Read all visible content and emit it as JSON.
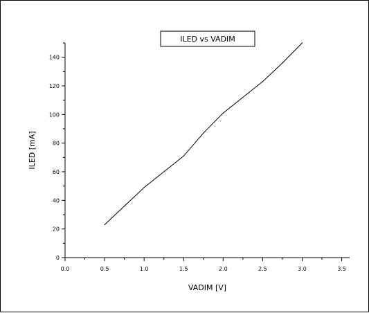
{
  "chart_data": {
    "type": "line",
    "title": "ILED vs VADIM",
    "xlabel": "VADIM [V]",
    "ylabel": "ILED [mA]",
    "xlim": [
      0.0,
      3.6
    ],
    "ylim": [
      0,
      150
    ],
    "xticks": [
      "0.0",
      "0.5",
      "1.0",
      "1.5",
      "2.0",
      "2.5",
      "3.0",
      "3.5"
    ],
    "yticks": [
      "0",
      "20",
      "40",
      "60",
      "80",
      "100",
      "120",
      "140"
    ],
    "grid": false,
    "legend_position": "top-center",
    "series": [
      {
        "x": [
          0.5,
          0.75,
          1.0,
          1.25,
          1.5,
          1.75,
          2.0,
          2.25,
          2.5,
          2.75,
          3.0
        ],
        "y": [
          23,
          36,
          49,
          60,
          71,
          87,
          101,
          112,
          123,
          136,
          150
        ]
      }
    ]
  },
  "colors": {
    "line": "#000000",
    "axis": "#000000",
    "background": "#ffffff"
  }
}
